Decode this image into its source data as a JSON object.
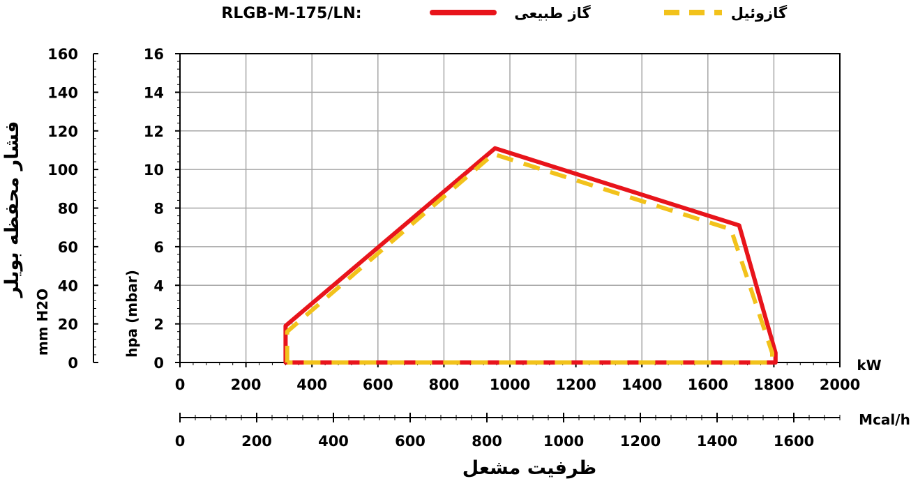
{
  "chart_data": {
    "type": "line",
    "title": "RLGB-M-175/LN:",
    "legend_placement": "top",
    "grid": true,
    "x_axis": {
      "unit": "kW",
      "range": [
        0,
        2000
      ],
      "ticks": [
        "0",
        "200",
        "400",
        "600",
        "800",
        "1000",
        "1200",
        "1400",
        "1600",
        "1800",
        "2000"
      ]
    },
    "x2_axis": {
      "unit": "Mcal/h",
      "range": [
        0,
        1720
      ],
      "ticks": [
        "0",
        "200",
        "400",
        "600",
        "800",
        "1000",
        "1200",
        "1400",
        "1600"
      ]
    },
    "x_title": "ظرفیت مشعل",
    "y_axis": {
      "label": "hpa (mbar)",
      "range": [
        0,
        16
      ],
      "ticks": [
        "0",
        "2",
        "4",
        "6",
        "8",
        "10",
        "12",
        "14",
        "16"
      ]
    },
    "y2_axis": {
      "label": "mm H2O",
      "range": [
        0,
        160
      ],
      "ticks": [
        "0",
        "20",
        "40",
        "60",
        "80",
        "100",
        "120",
        "140",
        "160"
      ]
    },
    "y_title": "فشار محفظه بویلر",
    "series": [
      {
        "name": "گاز طبیعی",
        "color": "#e8141b",
        "style": "solid",
        "x": [
          320,
          320,
          955,
          1695,
          1805,
          1805,
          320
        ],
        "y": [
          0,
          1.9,
          11.1,
          7.1,
          0.5,
          0,
          0
        ]
      },
      {
        "name": "گازوئیل",
        "color": "#f2c21b",
        "style": "dashed",
        "x": [
          325,
          325,
          950,
          1670,
          1795,
          1795,
          325
        ],
        "y": [
          0,
          1.6,
          10.8,
          6.9,
          0.5,
          0,
          0
        ]
      }
    ]
  }
}
